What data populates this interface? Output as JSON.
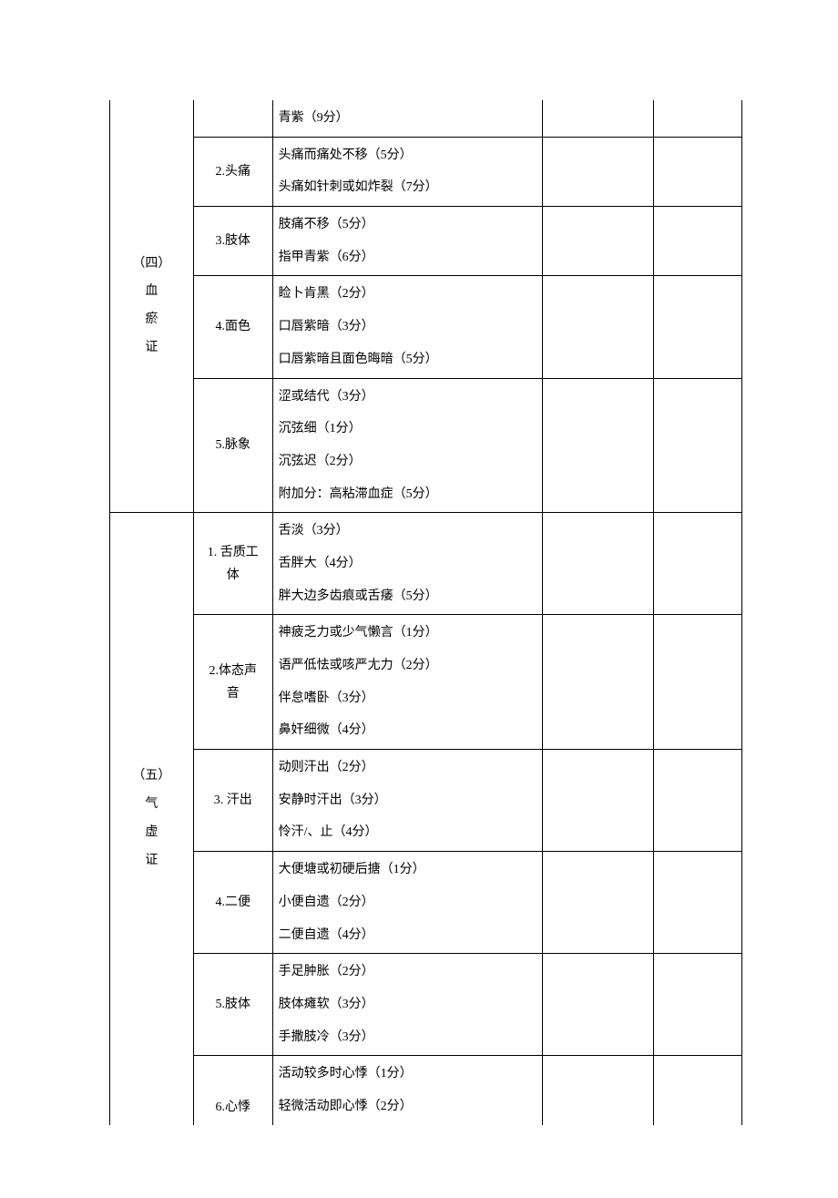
{
  "sections": {
    "s4": {
      "title_lines": [
        "（四）",
        "血",
        "瘀",
        "证"
      ],
      "rows": [
        {
          "label": "",
          "items": [
            "青紫（9分）"
          ],
          "label_hidden": true
        },
        {
          "label": "2.头痛",
          "items": [
            "头痛而痛处不移（5分）",
            "头痛如针刺或如炸裂（7分）"
          ]
        },
        {
          "label": "3.肢体",
          "items": [
            "肢痛不移（5分）",
            "指甲青紫（6分）"
          ]
        },
        {
          "label": "4.面色",
          "items": [
            "睑卜肯黑（2分）",
            "口唇紫暗（3分）",
            "口唇紫暗且面色晦暗（5分）"
          ]
        },
        {
          "label": "5.脉象",
          "items": [
            "涩或结代（3分）",
            "沉弦细（1分）",
            "沉弦迟（2分）",
            "附加分：高粘滞血症（5分）"
          ]
        }
      ]
    },
    "s5": {
      "title_lines": [
        "（五）",
        "气",
        "虚",
        "证"
      ],
      "rows": [
        {
          "label_lines": [
            "1. 舌质工",
            "体"
          ],
          "items": [
            "舌淡（3分）",
            "舌胖大（4分）",
            "胖大边多齿痕或舌痿（5分）"
          ]
        },
        {
          "label_lines": [
            "2.体态声",
            "音"
          ],
          "items": [
            "神疲乏力或少气懒言（1分）",
            "语严低怯或咳严尢力（2分）",
            "伴怠嗜卧（3分）",
            "鼻奸细微（4分）"
          ]
        },
        {
          "label": "3. 汗出",
          "items": [
            "动则汗出（2分）",
            "安静时汗出（3分）",
            "怜汗/、止（4分）"
          ]
        },
        {
          "label": "4.二便",
          "items": [
            "大便塘或初硬后搪（1分）",
            "小便自遗（2分）",
            "二便自遗（4分）"
          ]
        },
        {
          "label": "5.肢体",
          "items": [
            "手足肿胀（2分）",
            "肢体瘫软（3分）",
            "手撒肢冷（3分）"
          ]
        },
        {
          "label": "6.心悸",
          "items": [
            "活动较多时心悸（1分）",
            "轻微活动即心悸（2分）"
          ],
          "bottom_open": true,
          "label_valign": "bottom"
        }
      ]
    }
  }
}
